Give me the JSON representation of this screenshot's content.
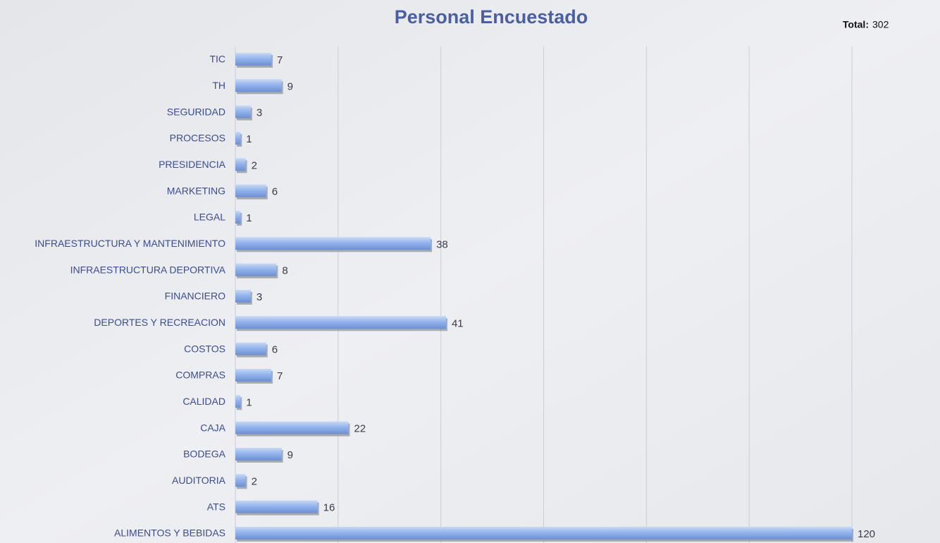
{
  "chart_data": {
    "type": "bar",
    "orientation": "horizontal",
    "title": "Personal Encuestado",
    "total_label": "Total:",
    "total": 302,
    "categories": [
      "TIC",
      "TH",
      "SEGURIDAD",
      "PROCESOS",
      "PRESIDENCIA",
      "MARKETING",
      "LEGAL",
      "INFRAESTRUCTURA Y MANTENIMIENTO",
      "INFRAESTRUCTURA DEPORTIVA",
      "FINANCIERO",
      "DEPORTES Y RECREACION",
      "COSTOS",
      "COMPRAS",
      "CALIDAD",
      "CAJA",
      "BODEGA",
      "AUDITORIA",
      "ATS",
      "ALIMENTOS Y BEBIDAS"
    ],
    "values": [
      7,
      9,
      3,
      1,
      2,
      6,
      1,
      38,
      8,
      3,
      41,
      6,
      7,
      1,
      22,
      9,
      2,
      16,
      120
    ],
    "color": "#8fb0ea",
    "xlim": [
      0,
      120
    ],
    "xticks": [
      0,
      20,
      40,
      60,
      80,
      100,
      120
    ],
    "grid": true
  }
}
